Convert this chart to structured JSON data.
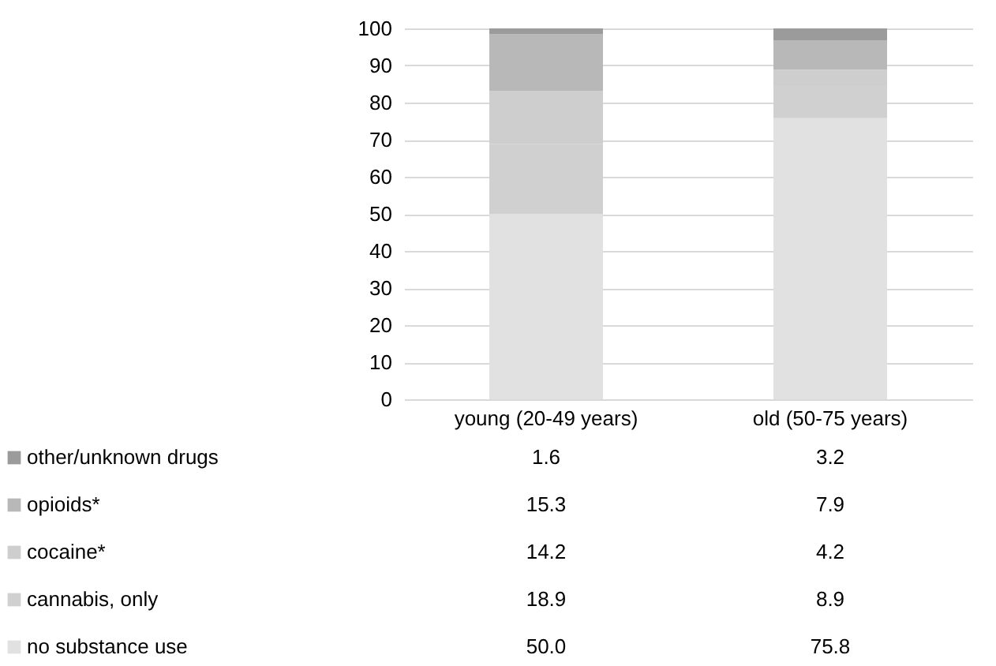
{
  "chart_data": {
    "type": "bar",
    "stacked": true,
    "categories": [
      "young (20-49 years)",
      "old (50-75 years)"
    ],
    "series": [
      {
        "name": "no substance use",
        "color": "#e1e1e1",
        "values": [
          50.0,
          75.8
        ],
        "value_labels": [
          "50.0",
          "75.8"
        ]
      },
      {
        "name": "cannabis, only",
        "color": "#cfd0cf",
        "values": [
          18.9,
          8.9
        ],
        "value_labels": [
          "18.9",
          "8.9"
        ]
      },
      {
        "name": "cocaine*",
        "color": "#cdcecd",
        "values": [
          14.2,
          4.2
        ],
        "value_labels": [
          "14.2",
          "4.2"
        ]
      },
      {
        "name": "opioids*",
        "color": "#b8b8b8",
        "values": [
          15.3,
          7.9
        ],
        "value_labels": [
          "15.3",
          "7.9"
        ]
      },
      {
        "name": "other/unknown drugs",
        "color": "#9b9b9b",
        "values": [
          1.6,
          3.2
        ],
        "value_labels": [
          "1.6",
          "3.2"
        ]
      }
    ],
    "ylim": [
      0,
      100
    ],
    "yticks": [
      0,
      10,
      20,
      30,
      40,
      50,
      60,
      70,
      80,
      90,
      100
    ],
    "grid": "y",
    "legend": "bottom left"
  }
}
